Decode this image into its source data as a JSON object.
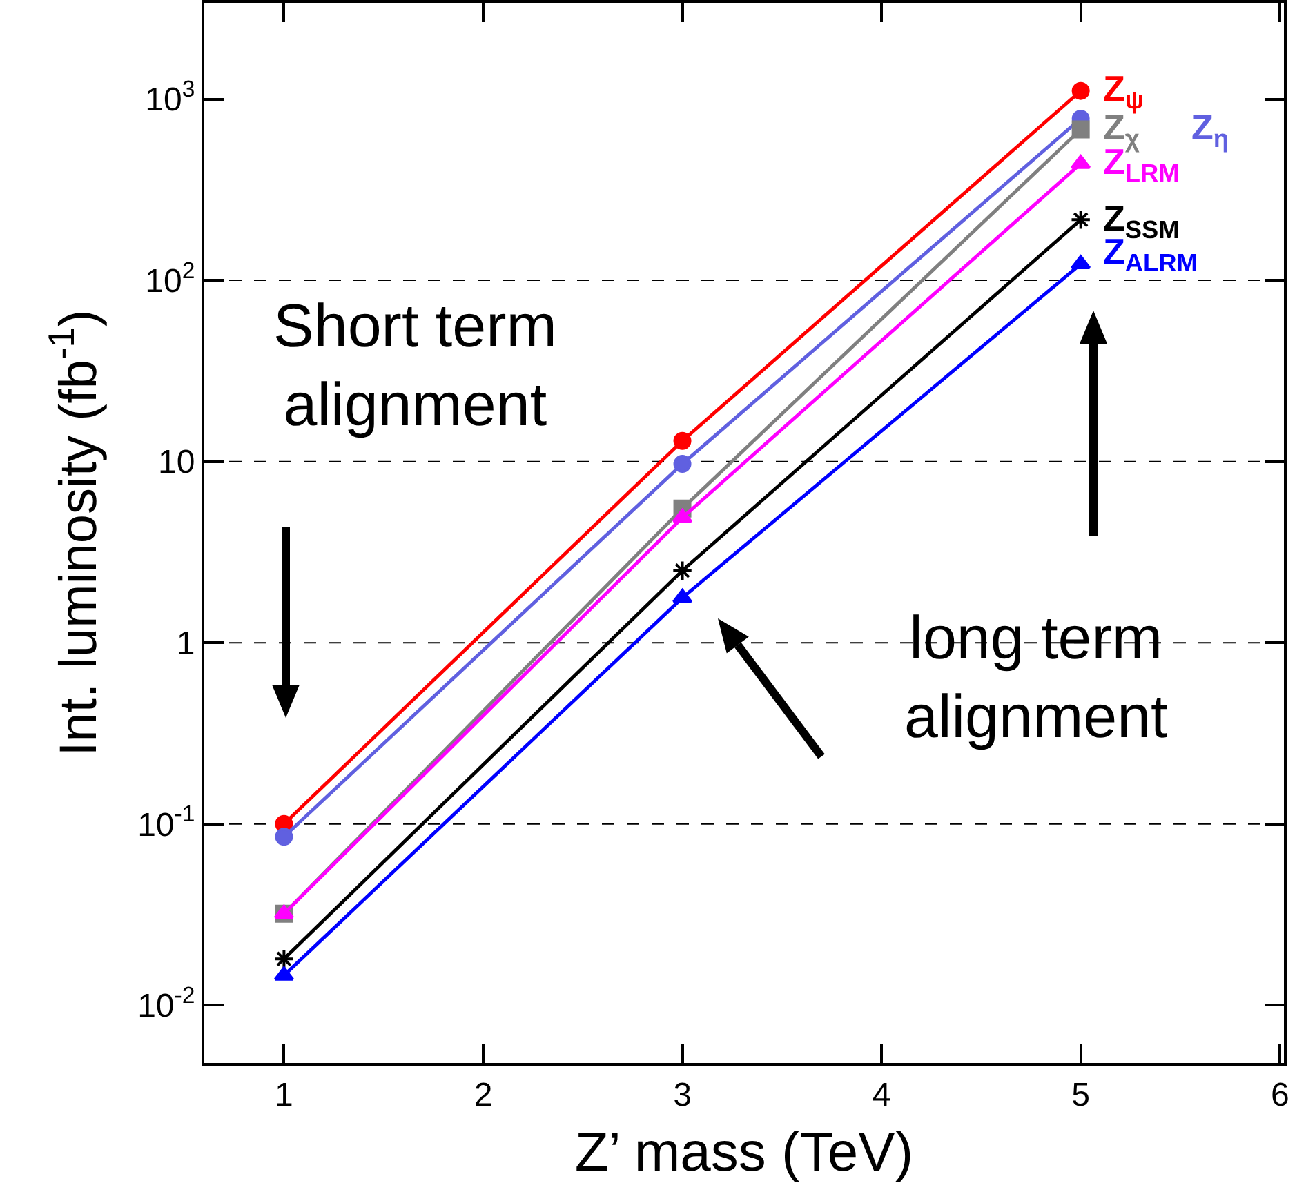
{
  "chart_data": {
    "type": "line",
    "xlabel": "Z’ mass (TeV)",
    "ylabel": "Int. luminosity (fb$^{-1}$)",
    "log": "y",
    "x": [
      1,
      3,
      5
    ],
    "xlim": [
      0.6,
      6.02
    ],
    "xticks": [
      1,
      2,
      3,
      4,
      5,
      6
    ],
    "ylim": [
      0.0048,
      3400
    ],
    "yticks": [
      {
        "value": 0.01,
        "label": "10$^{-2}$"
      },
      {
        "value": 0.1,
        "label": "10$^{-1}$"
      },
      1,
      10,
      {
        "value": 100,
        "label": "10$^{2}$"
      },
      {
        "value": 1000,
        "label": "10$^{3}$"
      }
    ],
    "legend": "right",
    "grid": false,
    "series": [
      {
        "name": "Z$_{ψ}$",
        "color": "#ff0000",
        "marker": "circle",
        "values": [
          0.1,
          13,
          1110
        ]
      },
      {
        "name": "Z$_{η}$",
        "color": "#6060e0",
        "marker": "circle",
        "values": [
          0.085,
          9.7,
          780
        ]
      },
      {
        "name": "Z$_{χ}$",
        "color": "#808080",
        "marker": "square",
        "values": [
          0.032,
          5.5,
          680
        ]
      },
      {
        "name": "Z$_{LRM}$",
        "color": "#ff00ff",
        "marker": "triangle",
        "values": [
          0.032,
          4.9,
          440
        ]
      },
      {
        "name": "Z$_{SSM}$",
        "color": "#000000",
        "marker": "cross",
        "values": [
          0.018,
          2.5,
          216
        ]
      },
      {
        "name": "Z$_{ALRM}$",
        "color": "#0000ff",
        "marker": "triangle",
        "values": [
          0.0146,
          1.77,
          123
        ]
      }
    ],
    "ref_lines": [
      {
        "axis": "y",
        "value": 0.1,
        "line_style": "dashed"
      },
      {
        "axis": "y",
        "value": 1,
        "line_style": "dashed"
      },
      {
        "axis": "y",
        "value": 10,
        "line_style": "dashed"
      },
      {
        "axis": "y",
        "value": 100,
        "line_style": "dashed"
      }
    ],
    "annotations": [
      "Short term\nalignment",
      "long term\nalignment"
    ]
  }
}
